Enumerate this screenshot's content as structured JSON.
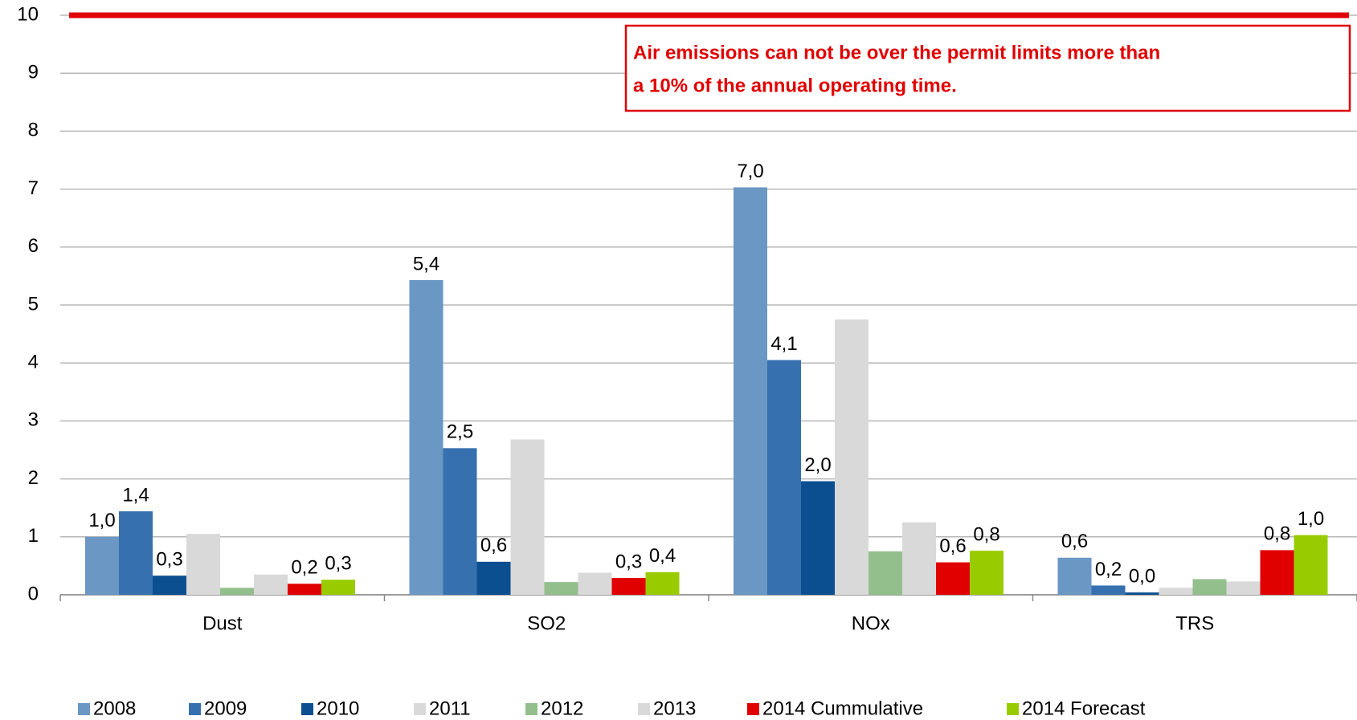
{
  "chart_data": {
    "type": "bar",
    "categories": [
      "Dust",
      "SO2",
      "NOx",
      "TRS"
    ],
    "series": [
      {
        "name": "2008",
        "color": "#6a97c4",
        "values": [
          1.0,
          5.43,
          7.03,
          0.64
        ],
        "value_labels": [
          "1,0",
          "5,4",
          "7,0",
          "0,6"
        ]
      },
      {
        "name": "2009",
        "color": "#3670ae",
        "values": [
          1.44,
          2.53,
          4.05,
          0.16
        ],
        "value_labels": [
          "1,4",
          "2,5",
          "4,1",
          "0,2"
        ]
      },
      {
        "name": "2010",
        "color": "#0b4f91",
        "values": [
          0.33,
          0.57,
          1.96,
          0.04
        ],
        "value_labels": [
          "0,3",
          "0,6",
          "2,0",
          "0,0"
        ]
      },
      {
        "name": "2011",
        "color": "#d9d9d9",
        "values": [
          1.05,
          2.68,
          4.75,
          0.12
        ]
      },
      {
        "name": "2012",
        "color": "#93bf8c",
        "values": [
          0.12,
          0.22,
          0.75,
          0.27
        ]
      },
      {
        "name": "2013",
        "color": "#d9d9d9",
        "values": [
          0.35,
          0.38,
          1.25,
          0.23
        ]
      },
      {
        "name": "2014 Cummulative",
        "color": "#e00000",
        "values": [
          0.19,
          0.29,
          0.56,
          0.77
        ],
        "value_labels": [
          "0,2",
          "0,3",
          "0,6",
          "0,8"
        ]
      },
      {
        "name": "2014 Forecast",
        "color": "#99cc00",
        "values": [
          0.26,
          0.39,
          0.76,
          1.03
        ],
        "value_labels": [
          "0,3",
          "0,4",
          "0,8",
          "1,0"
        ]
      }
    ],
    "ylim": [
      0,
      10
    ],
    "yticks": [
      0,
      1,
      2,
      3,
      4,
      5,
      6,
      7,
      8,
      9,
      10
    ],
    "grid": true,
    "reference_line": {
      "value": 10,
      "color": "#e00000"
    },
    "annotation": [
      "Air emissions can not be over the permit limits more than",
      "a 10% of the annual operating time."
    ],
    "legend": "bottom"
  }
}
